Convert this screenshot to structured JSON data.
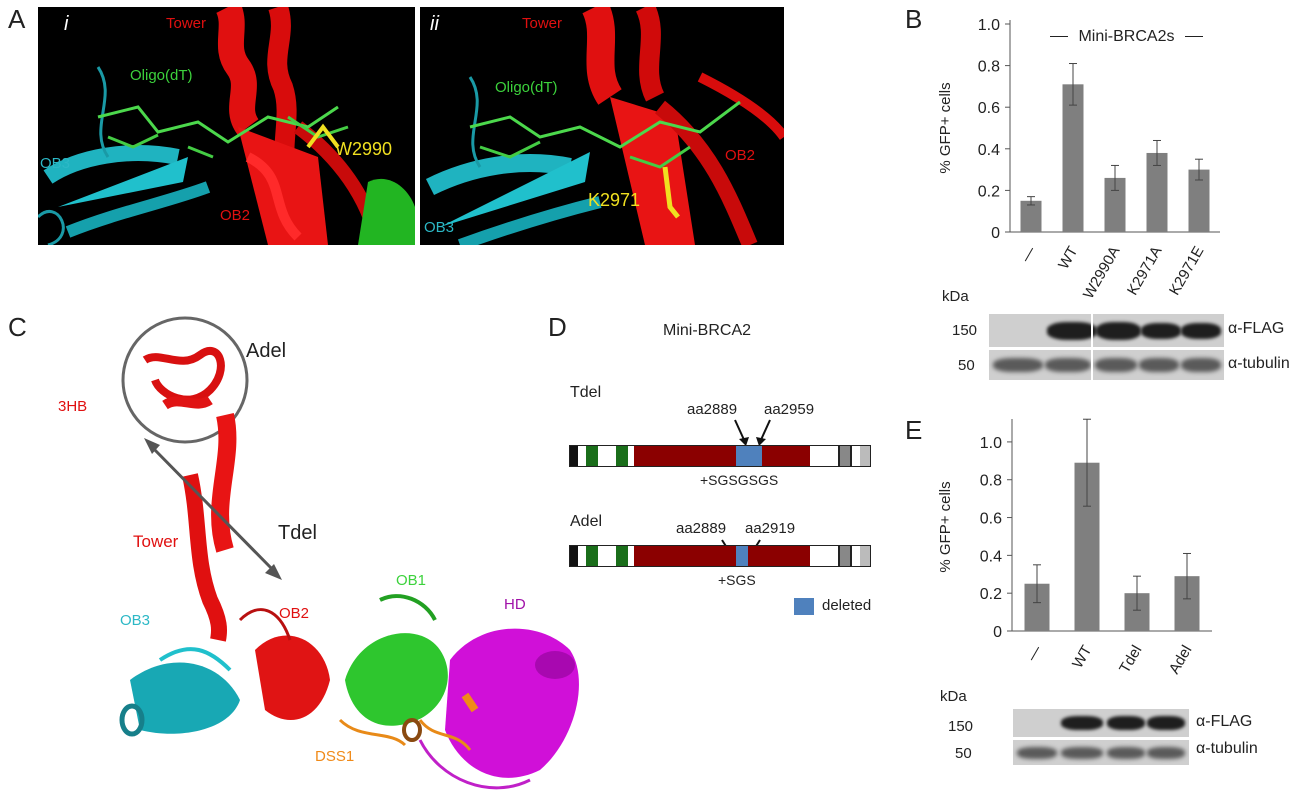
{
  "panels": {
    "A": {
      "letter": "A",
      "sub_i": "i",
      "sub_ii": "ii",
      "i_labels": {
        "tower": "Tower",
        "oligo": "Oligo(dT)",
        "ob3": "OB3",
        "ob2": "OB2",
        "residue": "W2990"
      },
      "ii_labels": {
        "tower": "Tower",
        "oligo": "Oligo(dT)",
        "ob3": "OB3",
        "ob2": "OB2",
        "residue": "K2971"
      }
    },
    "B": {
      "letter": "B",
      "legend_text": "Mini-BRCA2s",
      "blot": {
        "kda_label": "kDa",
        "rows": [
          {
            "kda": "150",
            "antibody": "α-FLAG"
          },
          {
            "kda": "50",
            "antibody": "α-tubulin"
          }
        ]
      }
    },
    "C": {
      "letter": "C",
      "labels": {
        "adel": "Adel",
        "three_hb": "3HB",
        "tower": "Tower",
        "tdel": "Tdel",
        "ob3": "OB3",
        "ob2": "OB2",
        "ob1": "OB1",
        "hd": "HD",
        "dss1": "DSS1"
      }
    },
    "D": {
      "letter": "D",
      "title": "Mini-BRCA2",
      "tdel": {
        "name": "Tdel",
        "left": "aa2889",
        "right": "aa2959",
        "insert": "+SGSGSGS"
      },
      "adel": {
        "name": "Adel",
        "left": "aa2889",
        "right": "aa2919",
        "insert": "+SGS"
      },
      "legend": "deleted",
      "colors": {
        "main": "#8b0000",
        "deleted": "#4f81bd",
        "green": "#1a6e1a"
      }
    },
    "E": {
      "letter": "E",
      "blot": {
        "kda_label": "kDa",
        "rows": [
          {
            "kda": "150",
            "antibody": "α-FLAG"
          },
          {
            "kda": "50",
            "antibody": "α-tubulin"
          }
        ]
      }
    }
  },
  "chart_data": [
    {
      "type": "bar",
      "panel": "B",
      "categories": [
        "—",
        "WT",
        "W2990A",
        "K2971A",
        "K2971E"
      ],
      "values": [
        0.15,
        0.71,
        0.26,
        0.38,
        0.3
      ],
      "errors": [
        0.02,
        0.1,
        0.06,
        0.06,
        0.05
      ],
      "ylabel": "% GFP+ cells",
      "yticks": [
        "0",
        "0.2",
        "0.4",
        "0.6",
        "0.8",
        "1.0"
      ],
      "ylim": [
        0,
        1.0
      ],
      "bar_color": "#7f7f7f"
    },
    {
      "type": "bar",
      "panel": "E",
      "categories": [
        "—",
        "WT",
        "Tdel",
        "Adel"
      ],
      "values": [
        0.25,
        0.89,
        0.2,
        0.29
      ],
      "errors": [
        0.1,
        0.23,
        0.09,
        0.12
      ],
      "ylabel": "% GFP+ cells",
      "yticks": [
        "0",
        "0.2",
        "0.4",
        "0.6",
        "0.8",
        "1.0"
      ],
      "ylim": [
        0,
        1.1
      ],
      "bar_color": "#7f7f7f"
    }
  ]
}
